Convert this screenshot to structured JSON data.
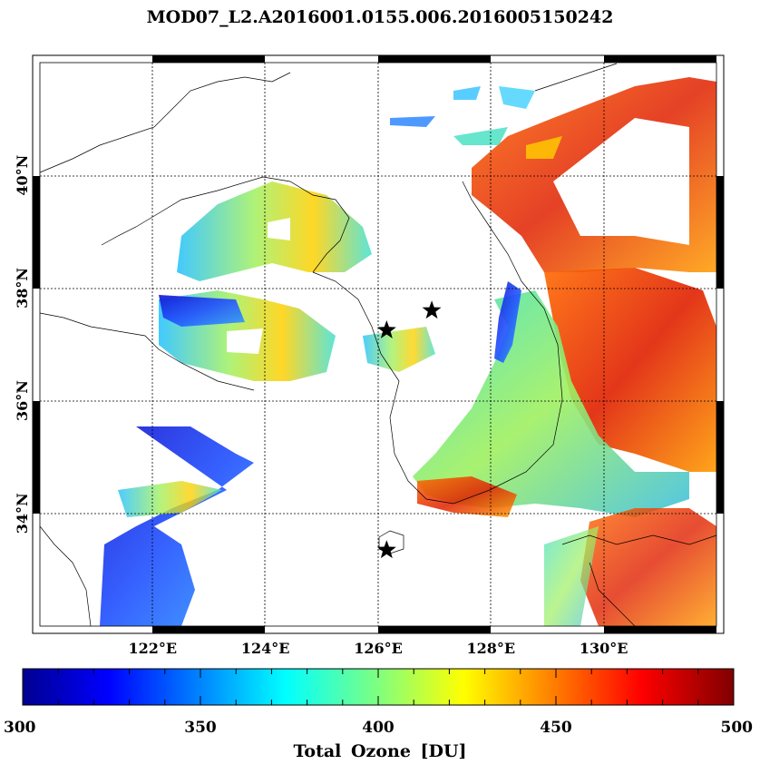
{
  "title": "MOD07_L2.A2016001.0155.006.2016005150242",
  "map": {
    "lon_range": [
      120,
      132
    ],
    "lat_range": [
      32,
      42
    ],
    "lon_ticks": [
      {
        "value": 122,
        "label": "122°E"
      },
      {
        "value": 124,
        "label": "124°E"
      },
      {
        "value": 126,
        "label": "126°E"
      },
      {
        "value": 128,
        "label": "128°E"
      },
      {
        "value": 130,
        "label": "130°E"
      }
    ],
    "lat_ticks": [
      {
        "value": 34,
        "label": "34°N"
      },
      {
        "value": 36,
        "label": "36°N"
      },
      {
        "value": 38,
        "label": "38°N"
      },
      {
        "value": 40,
        "label": "40°N"
      }
    ],
    "gridlines": "dotted",
    "stations": [
      {
        "name": "star",
        "lon": 126.15,
        "lat": 37.25
      },
      {
        "name": "star",
        "lon": 126.95,
        "lat": 37.6
      },
      {
        "name": "star",
        "lon": 126.15,
        "lat": 33.35
      }
    ]
  },
  "colorbar": {
    "min": 300,
    "max": 500,
    "tick_labels": [
      "300",
      "350",
      "400",
      "450",
      "500"
    ],
    "tick_values": [
      300,
      350,
      400,
      450,
      500
    ],
    "title": "Total Ozone [DU]",
    "colormap": [
      "#00008f",
      "#0000ff",
      "#00ffff",
      "#ffff00",
      "#ff0000",
      "#800000"
    ]
  }
}
